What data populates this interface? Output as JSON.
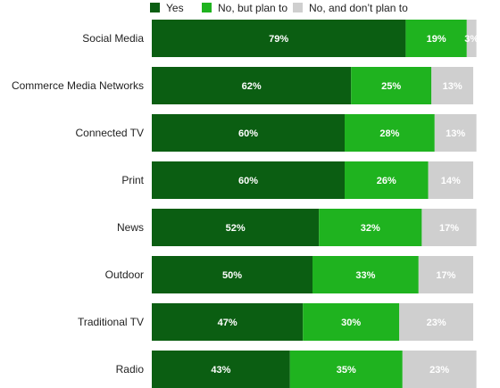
{
  "chart_data": {
    "type": "bar",
    "orientation": "horizontal",
    "stacked": true,
    "categories": [
      "Social Media",
      "Commerce Media Networks",
      "Connected TV",
      "Print",
      "News",
      "Outdoor",
      "Traditional TV",
      "Radio"
    ],
    "series": [
      {
        "name": "Yes",
        "color": "#0b5e12",
        "values": [
          79,
          62,
          60,
          60,
          52,
          50,
          47,
          43
        ]
      },
      {
        "name": "No, but plan to",
        "color": "#1fb31f",
        "values": [
          19,
          25,
          28,
          26,
          32,
          33,
          30,
          35
        ]
      },
      {
        "name": "No, and don’t plan to",
        "color": "#cfcfcf",
        "values": [
          3,
          13,
          13,
          14,
          17,
          17,
          23,
          23
        ]
      }
    ],
    "value_suffix": "%",
    "xlim": [
      0,
      100
    ],
    "legend_position": "top",
    "grid": false
  }
}
